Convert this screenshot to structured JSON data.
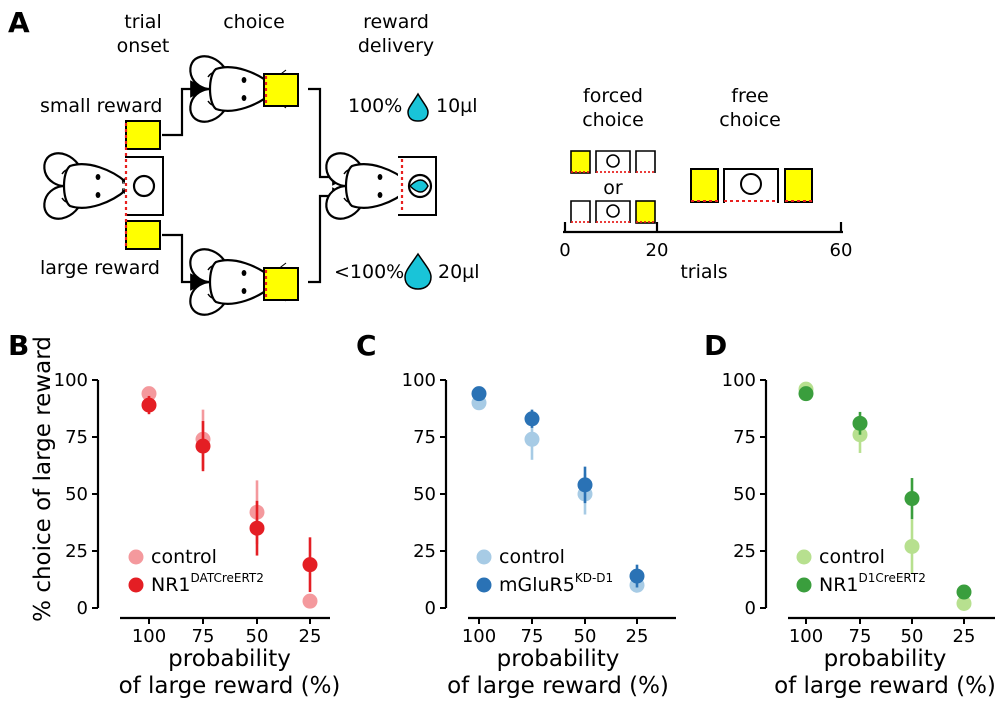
{
  "colors": {
    "yellow": "#ffff00",
    "water": "#19c4d8",
    "laser": "#e8201f",
    "red_control": "#f4999d",
    "red_mutant": "#e41e24",
    "blue_control": "#a7cbe5",
    "blue_mutant": "#2a72b5",
    "green_control": "#b7e08f",
    "green_mutant": "#3a9e3d"
  },
  "panel_a": {
    "letter": "A",
    "stage_trial_onset": [
      "trial",
      "onset"
    ],
    "stage_choice": "choice",
    "stage_reward_delivery": [
      "reward",
      "delivery"
    ],
    "small_reward": "small reward",
    "large_reward": "large reward",
    "small_prob": "100%",
    "small_volume": "10µl",
    "large_prob": "<100%",
    "large_volume": "20µl",
    "forced_choice": [
      "forced",
      "choice"
    ],
    "free_choice": [
      "free",
      "choice"
    ],
    "or": "or",
    "trial_axis": {
      "ticks": [
        "0",
        "20",
        "60"
      ],
      "label": "trials"
    }
  },
  "chart_data": [
    {
      "panel": "B",
      "type": "scatter",
      "categories": [
        "100",
        "75",
        "50",
        "25"
      ],
      "xlabel": [
        "probability",
        "of large reward (%)"
      ],
      "ylabel": "% choice of large reward",
      "ylim": [
        0,
        100
      ],
      "yticks": [
        "0",
        "25",
        "50",
        "75",
        "100"
      ],
      "legend_position": "bottom-left",
      "series": [
        {
          "name": "control",
          "color": "#f4999d",
          "values": [
            94,
            74,
            42,
            3
          ],
          "errors": [
            2,
            13,
            14,
            2
          ]
        },
        {
          "name": "NR1",
          "name_sup": "DATCreERT2",
          "color": "#e41e24",
          "values": [
            89,
            71,
            35,
            19
          ],
          "errors": [
            4,
            11,
            12,
            12
          ]
        }
      ]
    },
    {
      "panel": "C",
      "type": "scatter",
      "categories": [
        "100",
        "75",
        "50",
        "25"
      ],
      "xlabel": [
        "probability",
        "of large reward (%)"
      ],
      "ylim": [
        0,
        100
      ],
      "yticks": [
        "0",
        "25",
        "50",
        "75",
        "100"
      ],
      "legend_position": "bottom-left",
      "series": [
        {
          "name": "control",
          "color": "#a7cbe5",
          "values": [
            90,
            74,
            50,
            10
          ],
          "errors": [
            3,
            9,
            9,
            3
          ]
        },
        {
          "name": "mGluR5",
          "name_sup": "KD-D1",
          "color": "#2a72b5",
          "values": [
            94,
            83,
            54,
            14
          ],
          "errors": [
            2,
            4,
            8,
            5
          ]
        }
      ]
    },
    {
      "panel": "D",
      "type": "scatter",
      "categories": [
        "100",
        "75",
        "50",
        "25"
      ],
      "xlabel": [
        "probability",
        "of large reward (%)"
      ],
      "ylim": [
        0,
        100
      ],
      "yticks": [
        "0",
        "25",
        "50",
        "75",
        "100"
      ],
      "legend_position": "bottom-left",
      "series": [
        {
          "name": "control",
          "color": "#b7e08f",
          "values": [
            96,
            76,
            27,
            2
          ],
          "errors": [
            2,
            8,
            12,
            2
          ]
        },
        {
          "name": "NR1",
          "name_sup": "D1CreERT2",
          "color": "#3a9e3d",
          "values": [
            94,
            81,
            48,
            7
          ],
          "errors": [
            2,
            5,
            9,
            2
          ]
        }
      ]
    }
  ]
}
